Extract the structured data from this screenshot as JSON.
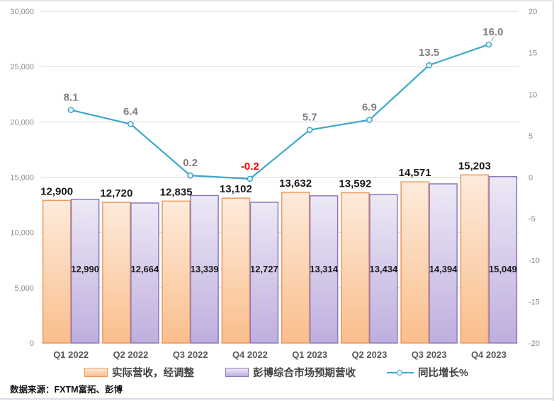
{
  "source_note": "数据来源：FXTM富拓、彭博",
  "legend": {
    "items": [
      {
        "label": "实际营收，经调整"
      },
      {
        "label": "彭博综合市场预期营收"
      },
      {
        "label": "同比增长%"
      }
    ]
  },
  "colors": {
    "actual_bar_fill_top": "#FDEBDC",
    "actual_bar_fill_bottom": "#FABE8C",
    "actual_bar_border": "#EC9959",
    "estimate_bar_fill_top": "#EDE9F6",
    "estimate_bar_fill_bottom": "#BFAEDE",
    "estimate_bar_border": "#8F7AB8",
    "growth_line": "#3BA7C9",
    "growth_marker_fill": "#EAF5F9",
    "gridline": "#D9D9D9",
    "axis_text": "#8C8C8C",
    "category_text": "#595959",
    "bar_label_text": "#1A1A1A",
    "line_label_text": "#7F7F7F",
    "negative_line_label_text": "#FF0000",
    "leader_line": "#A6A6A6"
  },
  "chart_data": {
    "type": "combo (bar + line)",
    "categories": [
      "Q1 2022",
      "Q2 2022",
      "Q3 2022",
      "Q4 2022",
      "Q1 2023",
      "Q2 2023",
      "Q3 2023",
      "Q4 2023"
    ],
    "series": [
      {
        "name": "实际营收，经调整",
        "type": "bar",
        "axis": "left",
        "values": [
          12900,
          12720,
          12835,
          13102,
          13632,
          13592,
          14571,
          15203
        ],
        "labels": [
          "12,900",
          "12,720",
          "12,835",
          "13,102",
          "13,632",
          "13,592",
          "14,571",
          "15,203"
        ]
      },
      {
        "name": "彭博综合市场预期营收",
        "type": "bar",
        "axis": "left",
        "values": [
          12990,
          12664,
          13339,
          12727,
          13314,
          13434,
          14394,
          15049
        ],
        "labels": [
          "12,990",
          "12,664",
          "13,339",
          "12,727",
          "13,314",
          "13,434",
          "14,394",
          "15,049"
        ]
      },
      {
        "name": "同比增长%",
        "type": "line",
        "axis": "right",
        "values": [
          8.1,
          6.4,
          0.2,
          -0.2,
          5.7,
          6.9,
          13.5,
          16.0
        ],
        "labels": [
          "8.1",
          "6.4",
          "0.2",
          "-0.2",
          "5.7",
          "6.9",
          "13.5",
          "16.0"
        ]
      }
    ],
    "left_axis": {
      "min": 0,
      "max": 30000,
      "step": 5000,
      "tick_labels": [
        "0",
        "5,000",
        "10,000",
        "15,000",
        "20,000",
        "25,000",
        "30,000"
      ]
    },
    "right_axis": {
      "min": -20,
      "max": 20,
      "step": 5,
      "tick_labels": [
        "-20",
        "-15",
        "-10",
        "-5",
        "0",
        "5",
        "10",
        "15",
        "20"
      ]
    },
    "grid": true,
    "legend_position": "bottom"
  }
}
